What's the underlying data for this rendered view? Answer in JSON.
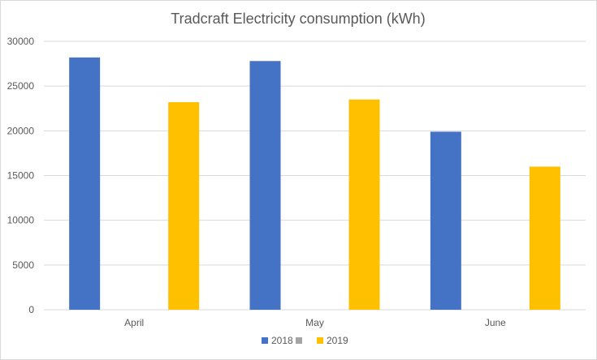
{
  "chart_data": {
    "type": "bar",
    "title": "Tradcraft Electricity consumption (kWh)",
    "categories": [
      "April",
      "May",
      "June"
    ],
    "series": [
      {
        "name": "2018",
        "values": [
          28200,
          27800,
          19900
        ],
        "color": "#4472c4"
      },
      {
        "name": "",
        "values": [
          0,
          0,
          0
        ],
        "color": "#a5a5a5"
      },
      {
        "name": "2019",
        "values": [
          23200,
          23500,
          16000
        ],
        "color": "#ffc000"
      }
    ],
    "yticks": [
      "0",
      "5000",
      "10000",
      "15000",
      "20000",
      "25000",
      "30000"
    ],
    "ylim": [
      0,
      30000
    ],
    "xlabel": "",
    "ylabel": "",
    "grid": true,
    "legend_position": "bottom",
    "gridline_color": "#d9d9d9"
  }
}
